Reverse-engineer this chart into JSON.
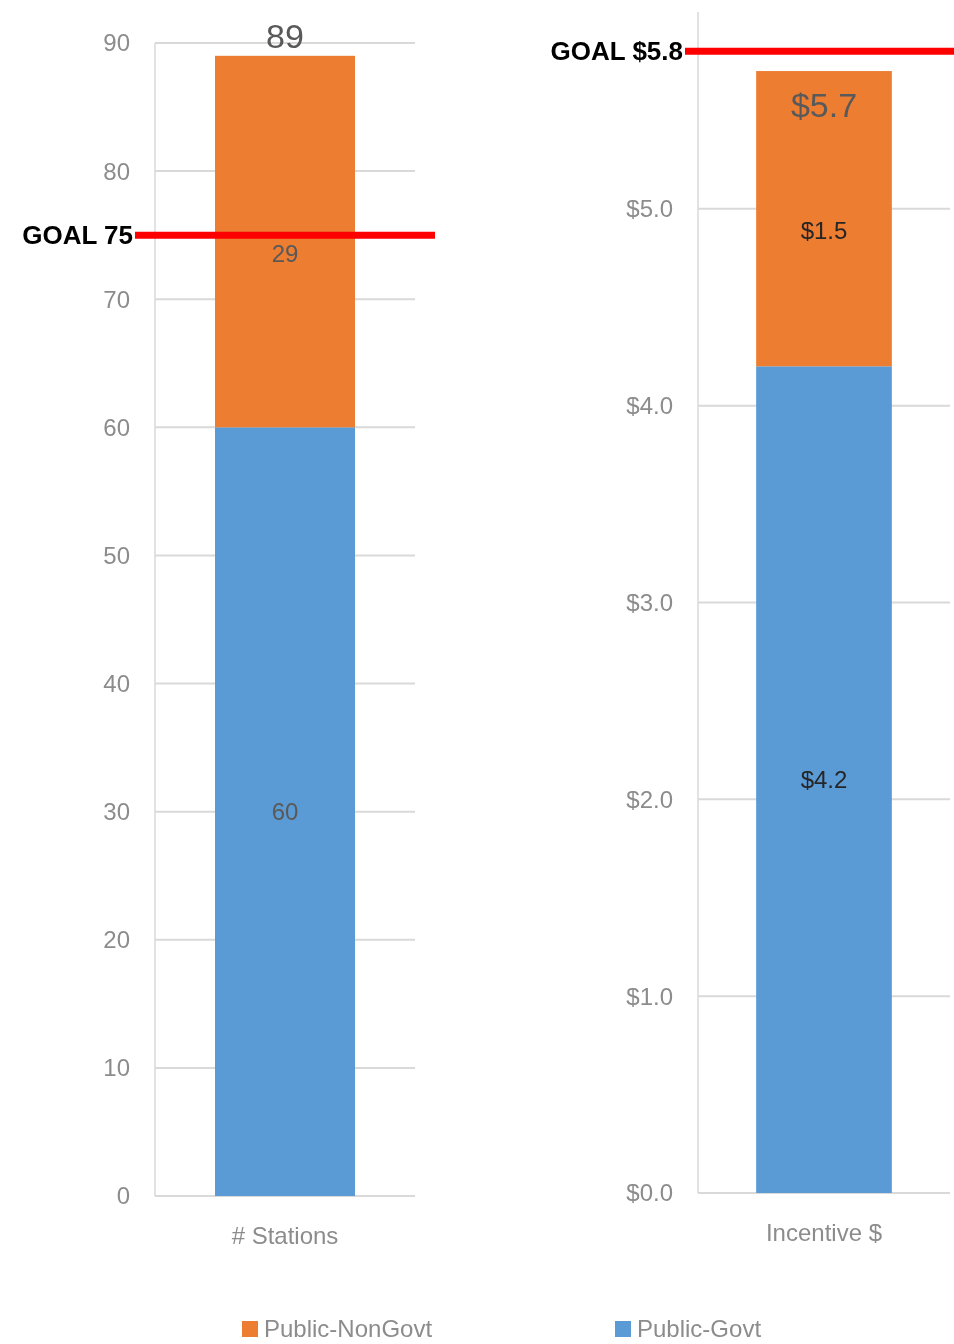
{
  "chart_data": [
    {
      "type": "bar",
      "stacked": true,
      "categories": [
        "# Stations"
      ],
      "series": [
        {
          "name": "Public-Govt",
          "color": "#5b9bd5",
          "values": [
            60
          ]
        },
        {
          "name": "Public-NonGovt",
          "color": "#ed7d31",
          "values": [
            29
          ]
        }
      ],
      "data_labels": true,
      "totals": [
        "89"
      ],
      "ylim": [
        0,
        90
      ],
      "yticks": [
        0,
        10,
        20,
        30,
        40,
        50,
        60,
        70,
        80,
        90
      ],
      "grid": "y",
      "legend": "bottom",
      "ref_lines": [
        {
          "axis": "y",
          "value": 75,
          "label": "GOAL 75",
          "color": "#ff0000"
        }
      ]
    },
    {
      "type": "bar",
      "stacked": true,
      "categories": [
        "Incentive $"
      ],
      "series": [
        {
          "color": "#5b9bd5",
          "values": [
            4.2
          ],
          "value_labels": [
            "$4.2"
          ]
        },
        {
          "color": "#ed7d31",
          "values": [
            1.5
          ],
          "value_labels": [
            "$1.5"
          ]
        }
      ],
      "totals": [
        "$5.7"
      ],
      "ylim": [
        0,
        6
      ],
      "yticks": [
        {
          "value": 0,
          "label": "$0.0"
        },
        {
          "value": 1,
          "label": "$1.0"
        },
        {
          "value": 2,
          "label": "$2.0"
        },
        {
          "value": 3,
          "label": "$3.0"
        },
        {
          "value": 4,
          "label": "$4.0"
        },
        {
          "value": 5,
          "label": "$5.0"
        }
      ],
      "grid": "y",
      "ref_lines": [
        {
          "axis": "y",
          "value": 5.8,
          "label": "GOAL $5.8",
          "color": "#ff0000"
        }
      ]
    }
  ]
}
